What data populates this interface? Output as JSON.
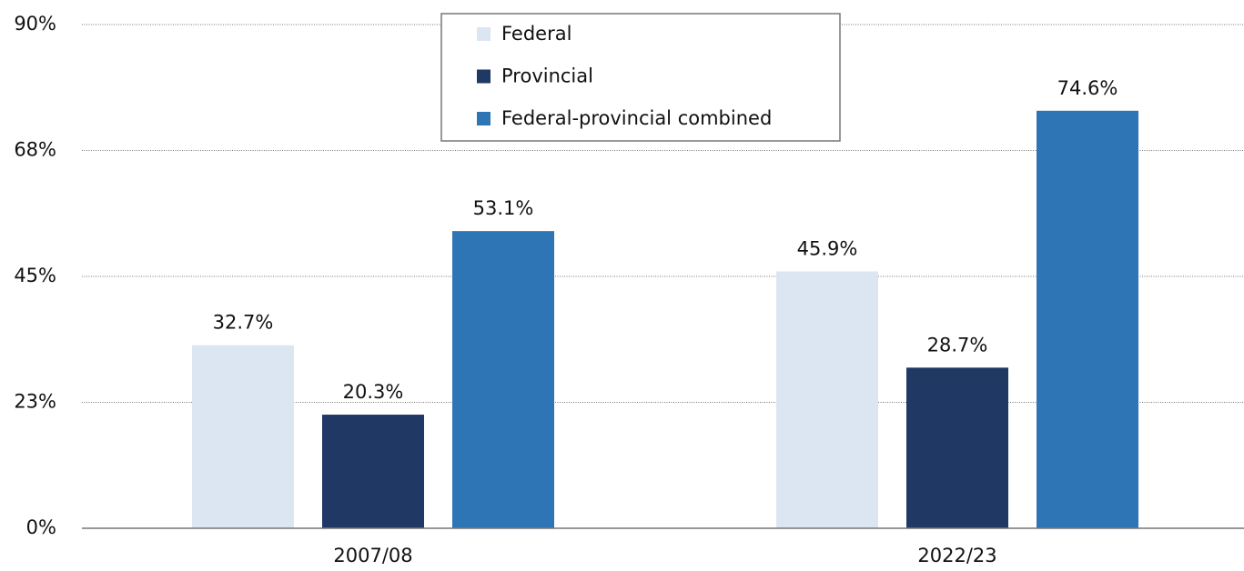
{
  "chart_data": {
    "type": "bar",
    "categories": [
      "2007/08",
      "2022/23"
    ],
    "series": [
      {
        "name": "Federal",
        "color": "#dce6f2",
        "values": [
          32.7,
          45.9
        ],
        "value_labels": [
          "32.7%",
          "45.9%"
        ]
      },
      {
        "name": "Provincial",
        "color": "#203864",
        "values": [
          20.3,
          28.7
        ],
        "value_labels": [
          "20.3%",
          "28.7%"
        ]
      },
      {
        "name": "Federal-provincial combined",
        "color": "#2e75b6",
        "values": [
          53.1,
          74.6
        ],
        "value_labels": [
          "53.1%",
          "74.6%"
        ]
      }
    ],
    "ylim": [
      0,
      90
    ],
    "yticks": [
      {
        "value": 0,
        "label": "0%"
      },
      {
        "value": 22.5,
        "label": "23%"
      },
      {
        "value": 45,
        "label": "45%"
      },
      {
        "value": 67.5,
        "label": "68%"
      },
      {
        "value": 90,
        "label": "90%"
      }
    ],
    "grid": true,
    "legend": "top"
  }
}
